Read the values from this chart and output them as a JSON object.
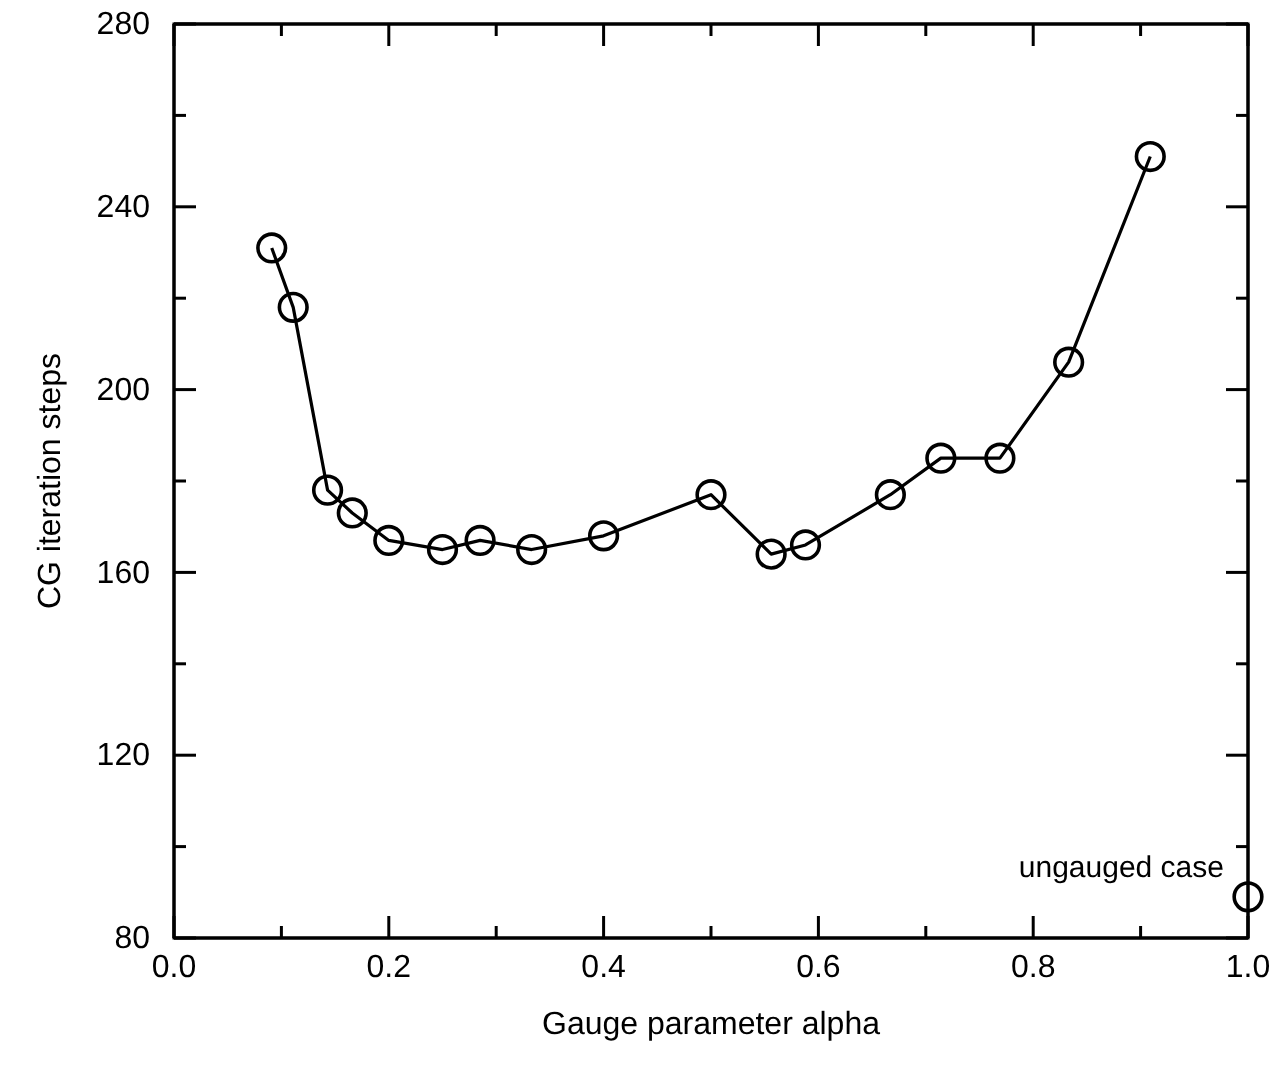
{
  "chart_data": {
    "type": "line",
    "xlabel": "Gauge parameter alpha",
    "ylabel": "CG iteration steps",
    "xlim": [
      0,
      1
    ],
    "ylim": [
      80,
      280
    ],
    "xticks": [
      {
        "value": 0,
        "label": "0.0"
      },
      {
        "value": 0.1,
        "label": null
      },
      {
        "value": 0.2,
        "label": "0.2"
      },
      {
        "value": 0.3,
        "label": null
      },
      {
        "value": 0.4,
        "label": "0.4"
      },
      {
        "value": 0.5,
        "label": null
      },
      {
        "value": 0.6,
        "label": "0.6"
      },
      {
        "value": 0.7,
        "label": null
      },
      {
        "value": 0.8,
        "label": "0.8"
      },
      {
        "value": 0.9,
        "label": null
      },
      {
        "value": 1,
        "label": "1.0"
      }
    ],
    "yticks": [
      80,
      {
        "value": 100,
        "label": null
      },
      120,
      {
        "value": 140,
        "label": null
      },
      160,
      {
        "value": 180,
        "label": null
      },
      200,
      {
        "value": 220,
        "label": null
      },
      240,
      {
        "value": 260,
        "label": null
      },
      280
    ],
    "marker": "circle",
    "line_style": "solid",
    "grid": false,
    "series": [
      {
        "color": "#000000",
        "x": [
          0.091,
          0.111,
          0.143,
          0.166,
          0.2,
          0.25,
          0.285,
          0.333,
          0.4,
          0.5,
          0.556,
          0.588,
          0.667,
          0.714,
          0.769,
          0.833,
          0.909
        ],
        "values": [
          231,
          218,
          178,
          173,
          167,
          165,
          167,
          165,
          168,
          177,
          164,
          166,
          177,
          185,
          185,
          206,
          251
        ]
      },
      {
        "type": "scatter",
        "color": "#000000",
        "x": [
          1.0
        ],
        "values": [
          89
        ]
      }
    ],
    "annotations": [
      {
        "text": "ungauged case",
        "x": 1.0,
        "y": 89
      }
    ]
  }
}
